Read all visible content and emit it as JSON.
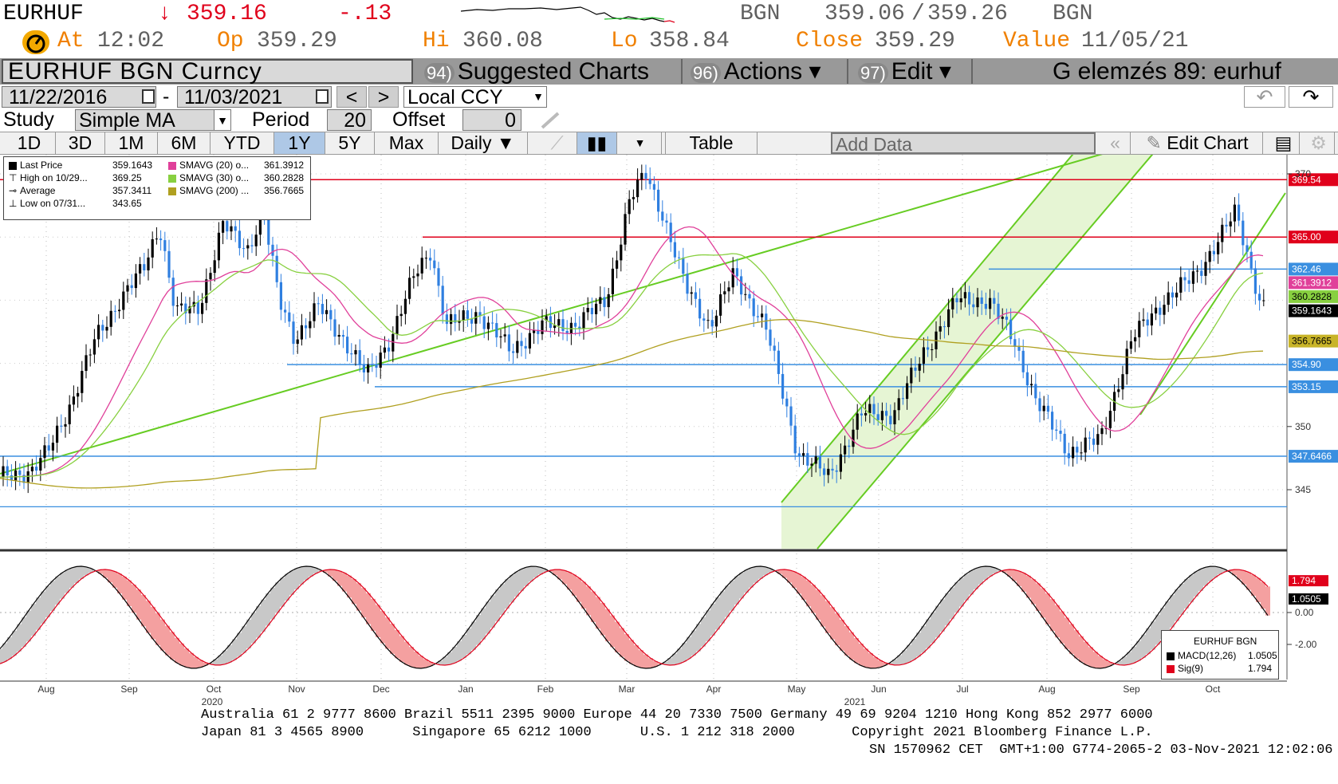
{
  "header": {
    "ticker": "EURHUF",
    "last_arrow": "↓",
    "last_price": "359.16",
    "change": "-.13",
    "source_left": "BGN",
    "bid": "359.06",
    "ask": "359.26",
    "source_right": "BGN",
    "at_label": "At",
    "at_time": "12:02",
    "op_label": "Op",
    "op_value": "359.29",
    "hi_label": "Hi",
    "hi_value": "360.08",
    "lo_label": "Lo",
    "lo_value": "358.84",
    "close_label": "Close",
    "close_value": "359.29",
    "value_label": "Value",
    "value_date": "11/05/21"
  },
  "titlebar": {
    "security": "EURHUF BGN Curncy",
    "menu": [
      {
        "num": "94)",
        "label": "Suggested Charts"
      },
      {
        "num": "96)",
        "label": "Actions ▾"
      },
      {
        "num": "97)",
        "label": "Edit ▾"
      }
    ],
    "right_title": "G elemzés 89: eurhuf"
  },
  "controls": {
    "start_date": "11/22/2016",
    "date_sep": "-",
    "end_date": "11/03/2021",
    "prev": "<",
    "next": ">",
    "currency": "Local CCY",
    "study_label": "Study",
    "study_value": "Simple MA",
    "period_label": "Period",
    "period_value": "20",
    "offset_label": "Offset",
    "offset_value": "0",
    "undo": "↶",
    "redo": "↷"
  },
  "tabs": [
    "1D",
    "3D",
    "1M",
    "6M",
    "YTD",
    "1Y",
    "5Y",
    "Max"
  ],
  "active_tab": "1Y",
  "toolbar": {
    "frequency": "Daily ▼",
    "table": "Table",
    "add_data_placeholder": "Add Data",
    "collapse": "«",
    "edit_chart": "Edit Chart"
  },
  "legend": {
    "rows": [
      {
        "label": "Last Price",
        "value": "359.1643",
        "color": "#000000"
      },
      {
        "label": "High on 10/29...",
        "value": "369.25",
        "color": "#000000"
      },
      {
        "label": "Average",
        "value": "357.3411",
        "color": "#000000"
      },
      {
        "label": "Low on 07/31...",
        "value": "343.65",
        "color": "#000000"
      }
    ],
    "ma_rows": [
      {
        "label": "SMAVG (20)",
        "suffix": "o...",
        "value": "361.3912",
        "color": "#e0409a"
      },
      {
        "label": "SMAVG (30)",
        "suffix": "o...",
        "value": "360.2828",
        "color": "#88d040"
      },
      {
        "label": "SMAVG (200)",
        "suffix": "...",
        "value": "356.7665",
        "color": "#b0a020"
      }
    ]
  },
  "price_tags": [
    {
      "text": "369.54",
      "color": "#e0001b",
      "text_color": "#ffffff"
    },
    {
      "text": "365.00",
      "color": "#e0001b",
      "text_color": "#ffffff"
    },
    {
      "text": "362.46",
      "color": "#3a8fe0",
      "text_color": "#ffffff"
    },
    {
      "text": "361.3912",
      "color": "#e0409a",
      "text_color": "#ffffff"
    },
    {
      "text": "360.2828",
      "color": "#88d040",
      "text_color": "#000000"
    },
    {
      "text": "359.1643",
      "color": "#000000",
      "text_color": "#ffffff"
    },
    {
      "text": "356.7665",
      "color": "#c8b428",
      "text_color": "#000000"
    },
    {
      "text": "354.90",
      "color": "#3a8fe0",
      "text_color": "#ffffff"
    },
    {
      "text": "353.15",
      "color": "#3a8fe0",
      "text_color": "#ffffff"
    },
    {
      "text": "347.6466",
      "color": "#3a8fe0",
      "text_color": "#ffffff"
    }
  ],
  "y_ticks": [
    "370",
    "350",
    "345"
  ],
  "macd_tags": [
    {
      "text": "1.794",
      "color": "#e0001b",
      "text_color": "#ffffff"
    },
    {
      "text": "1.0505",
      "color": "#000000",
      "text_color": "#ffffff"
    }
  ],
  "macd_ticks": [
    "0.00",
    "-2.00"
  ],
  "macd_legend": {
    "title": "EURHUF BGN",
    "rows": [
      {
        "label": "MACD(12,26)",
        "value": "1.0505",
        "color": "#000000"
      },
      {
        "label": "Sig(9)",
        "value": "1.794",
        "color": "#e0001b"
      }
    ]
  },
  "x_axis": {
    "months": [
      "Aug",
      "Sep",
      "Oct",
      "Nov",
      "Dec",
      "Jan",
      "Feb",
      "Mar",
      "Apr",
      "May",
      "Jun",
      "Jul",
      "Aug",
      "Sep",
      "Oct"
    ],
    "years": [
      "2020",
      "2021"
    ]
  },
  "footer": {
    "line1": "Australia 61 2 9777 8600 Brazil 5511 2395 9000 Europe 44 20 7330 7500 Germany 49 69 9204 1210 Hong Kong 852 2977 6000",
    "line2": "Japan 81 3 4565 8900      Singapore 65 6212 1000      U.S. 1 212 318 2000       Copyright 2021 Bloomberg Finance L.P.",
    "line3": "SN 1570962 CET  GMT+1:00 G774-2065-2 03-Nov-2021 12:02:06"
  },
  "colors": {
    "up": "#000000",
    "down": "#2f7fe0",
    "resistance": "#e0001b",
    "support": "#3a8fe0",
    "trend": "#66cc22",
    "channel_fill": "#e6f5d4"
  }
}
